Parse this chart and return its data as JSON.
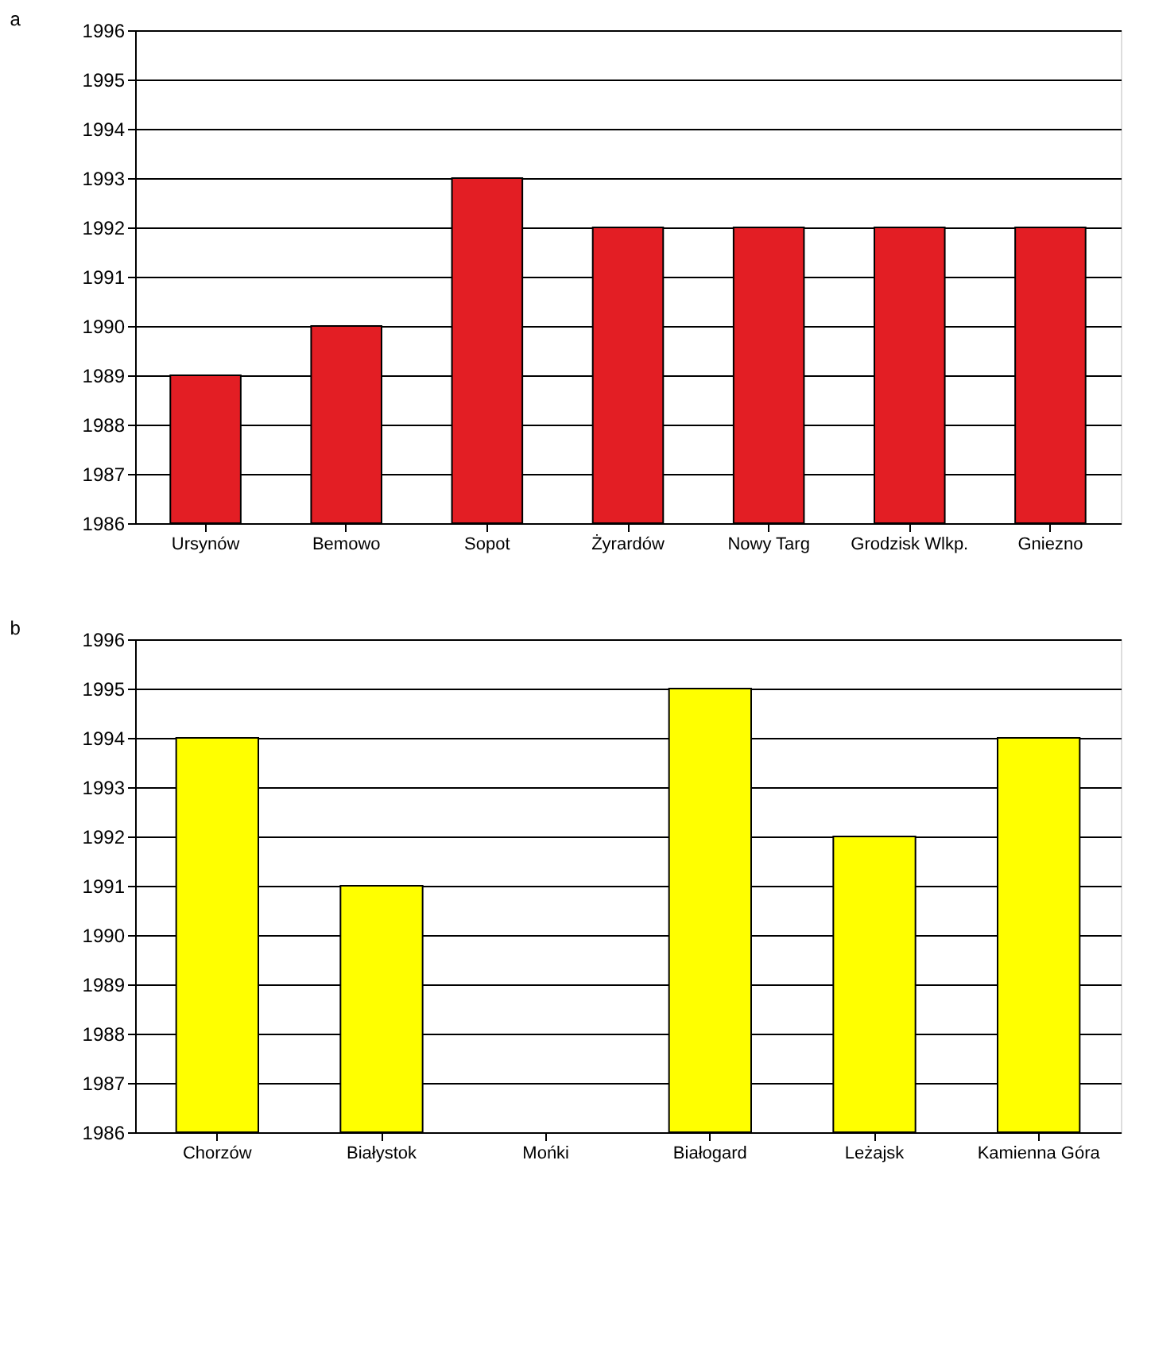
{
  "chart_data": [
    {
      "type": "bar",
      "title": "a",
      "categories": [
        "Ursynów",
        "Bemowo",
        "Sopot",
        "Żyrardów",
        "Nowy Targ",
        "Grodzisk Wlkp.",
        "Gniezno"
      ],
      "values": [
        1989,
        1990,
        1993,
        1992,
        1992,
        1992,
        1992
      ],
      "color": "#e31e24",
      "ylim": [
        1986,
        1996
      ],
      "yticks": [
        1986,
        1987,
        1988,
        1989,
        1990,
        1991,
        1992,
        1993,
        1994,
        1995,
        1996
      ],
      "grid": "y"
    },
    {
      "type": "bar",
      "title": "b",
      "categories": [
        "Chorzów",
        "Białystok",
        "Mońki",
        "Białogard",
        "Leżajsk",
        "Kamienna Góra"
      ],
      "values": [
        1994,
        1991,
        null,
        1995,
        1992,
        1994
      ],
      "color": "#ffff00",
      "ylim": [
        1986,
        1996
      ],
      "yticks": [
        1986,
        1987,
        1988,
        1989,
        1990,
        1991,
        1992,
        1993,
        1994,
        1995,
        1996
      ],
      "grid": "y"
    }
  ]
}
